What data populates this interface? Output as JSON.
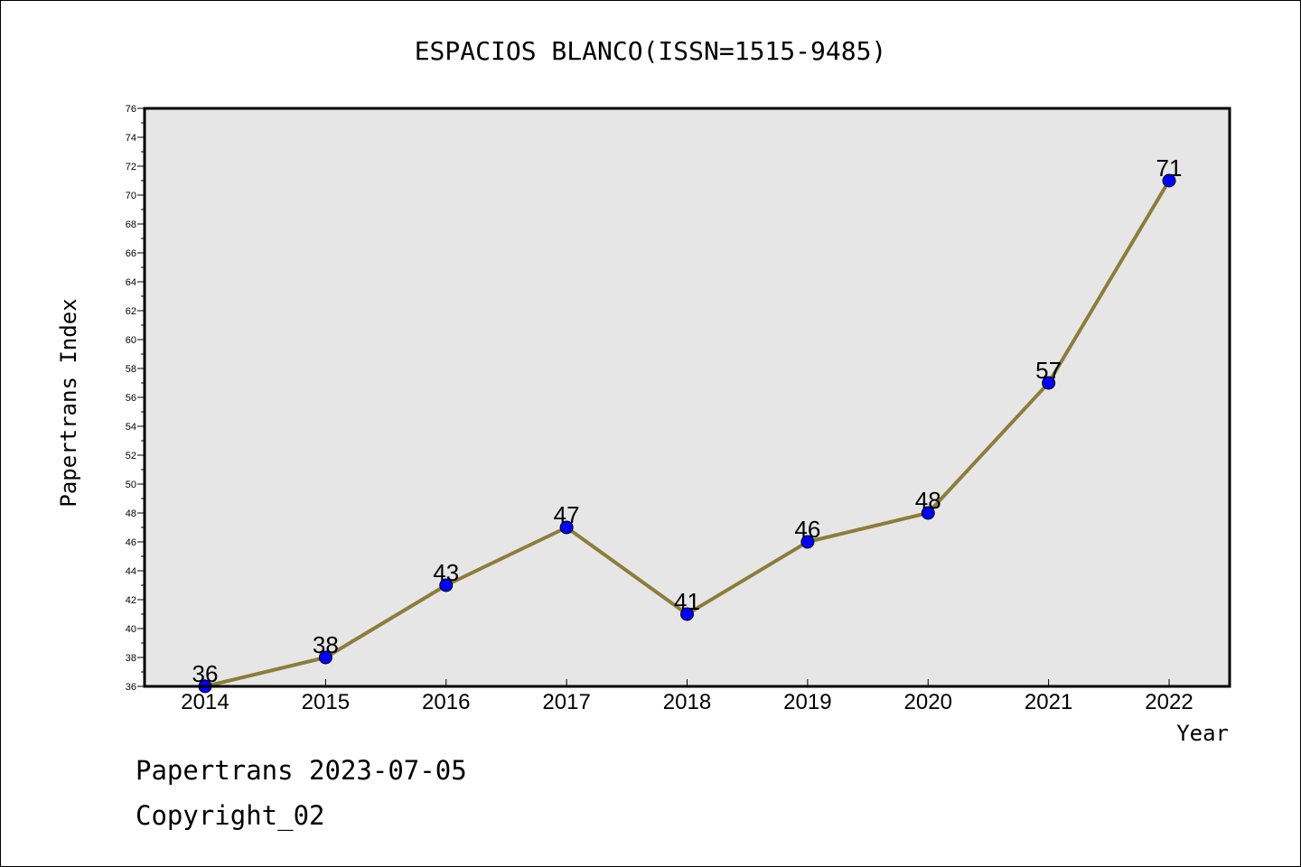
{
  "chart_data": {
    "type": "line",
    "title": "ESPACIOS BLANCO(ISSN=1515-9485)",
    "xlabel": "Year",
    "ylabel": "Papertrans Index",
    "categories": [
      "2014",
      "2015",
      "2016",
      "2017",
      "2018",
      "2019",
      "2020",
      "2021",
      "2022"
    ],
    "series": [
      {
        "values": [
          36,
          38,
          43,
          47,
          41,
          46,
          48,
          57,
          71
        ]
      }
    ],
    "ylim": [
      36,
      76
    ],
    "y_major_step": 2,
    "grid": false,
    "colors": {
      "line": "#8c7d3c",
      "marker": "#0000ff",
      "plot_background": "#e6e6e6"
    }
  },
  "footer": {
    "line1": "Papertrans 2023-07-05",
    "line2": "Copyright_02"
  }
}
